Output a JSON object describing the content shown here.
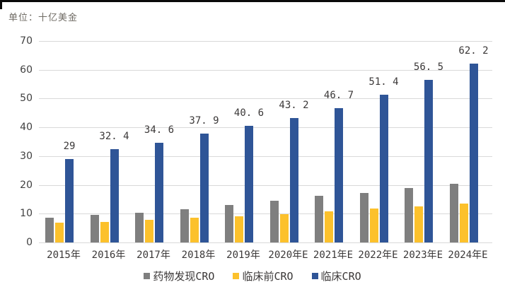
{
  "chart": {
    "unit_label": "单位：十亿美金"
  },
  "colors": {
    "drug_discovery": "#7F7F7F",
    "preclinical": "#FCC12C",
    "clinical": "#2F5597",
    "gridline": "#D9D9D9",
    "axis_text": "#404040",
    "label_text": "#3B3838",
    "unit_text": "#6F6B64",
    "top_border": "#0A0A0A"
  },
  "chart_data": {
    "type": "bar",
    "title": "",
    "unit_label": "单位：十亿美金",
    "categories": [
      "2015年",
      "2016年",
      "2017年",
      "2018年",
      "2019年",
      "2020年E",
      "2021年E",
      "2022年E",
      "2023年E",
      "2024年E"
    ],
    "series": [
      {
        "key": "drug-discovery-cro",
        "name": "药物发现CRO",
        "color": "#7F7F7F",
        "values": [
          8.5,
          9.5,
          10.4,
          11.5,
          13.1,
          14.4,
          16.1,
          17.2,
          18.9,
          20.4
        ]
      },
      {
        "key": "preclinical-cro",
        "name": "临床前CRO",
        "color": "#FCC12C",
        "values": [
          6.8,
          7.2,
          7.9,
          8.5,
          9.1,
          9.8,
          10.8,
          11.8,
          12.6,
          13.6
        ]
      },
      {
        "key": "clinical-cro",
        "name": "临床CRO",
        "color": "#2F5597",
        "values": [
          29,
          32.4,
          34.6,
          37.9,
          40.6,
          43.2,
          46.7,
          51.4,
          56.5,
          62.2
        ],
        "data_labels": [
          "29",
          "32. 4",
          "34. 6",
          "37. 9",
          "40. 6",
          "43. 2",
          "46. 7",
          "51. 4",
          "56. 5",
          "62. 2"
        ]
      }
    ],
    "xlabel": "",
    "ylabel": "",
    "ylim": [
      0,
      70
    ],
    "yticks": [
      0,
      10,
      20,
      30,
      40,
      50,
      60,
      70
    ],
    "grid": true,
    "legend_position": "bottom"
  }
}
